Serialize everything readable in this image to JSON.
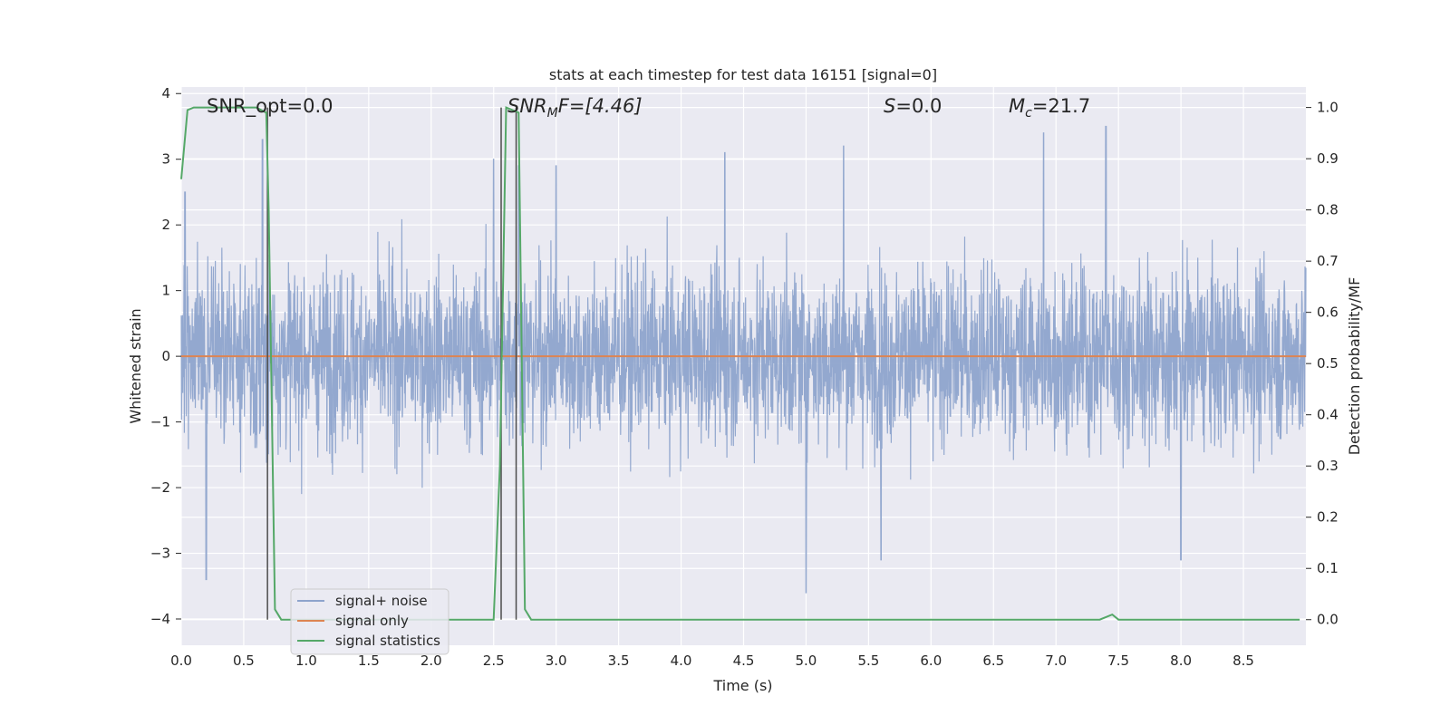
{
  "chart_data": {
    "type": "line",
    "title": "stats at each timestep for test data 16151 [signal=0]",
    "xlabel": "Time (s)",
    "ylabel": "Whitened strain",
    "y2label": "Detection probability/MF",
    "xlim": [
      0,
      9.0
    ],
    "ylim": [
      -4.4,
      4.1
    ],
    "y2lim": [
      -0.05,
      1.04
    ],
    "xticks": [
      "0.0",
      "0.5",
      "1.0",
      "1.5",
      "2.0",
      "2.5",
      "3.0",
      "3.5",
      "4.0",
      "4.5",
      "5.0",
      "5.5",
      "6.0",
      "6.5",
      "7.0",
      "7.5",
      "8.0",
      "8.5"
    ],
    "xtick_values": [
      0,
      0.5,
      1,
      1.5,
      2,
      2.5,
      3,
      3.5,
      4,
      4.5,
      5,
      5.5,
      6,
      6.5,
      7,
      7.5,
      8,
      8.5
    ],
    "yticks": [
      "−4",
      "−3",
      "−2",
      "−1",
      "0",
      "1",
      "2",
      "3",
      "4"
    ],
    "ytick_values": [
      -4,
      -3,
      -2,
      -1,
      0,
      1,
      2,
      3,
      4
    ],
    "y2ticks": [
      "0.0",
      "0.1",
      "0.2",
      "0.3",
      "0.4",
      "0.5",
      "0.6",
      "0.7",
      "0.8",
      "0.9",
      "1.0"
    ],
    "y2tick_values": [
      0,
      0.1,
      0.2,
      0.3,
      0.4,
      0.5,
      0.6,
      0.7,
      0.8,
      0.9,
      1.0
    ],
    "grid": true,
    "legend_position": "lower-left",
    "annotations": {
      "snr_opt": "SNR_opt=0.0",
      "snr_mf_main": "SNR",
      "snr_mf_sub": "M",
      "snr_mf_rest": "F=[4.46]",
      "s_main": "S",
      "s_rest": "=0.0",
      "mc_main": "M",
      "mc_sub": "c",
      "mc_rest": "=21.7"
    },
    "series": [
      {
        "name": "signal+ noise",
        "color": "#8ea4cc",
        "axis": "left",
        "noise_amplitude": 1.3,
        "peaks": [
          [
            0.03,
            2.5
          ],
          [
            0.2,
            -3.4
          ],
          [
            0.65,
            3.3
          ],
          [
            2.5,
            3.0
          ],
          [
            2.7,
            2.9
          ],
          [
            3.0,
            2.9
          ],
          [
            4.35,
            3.1
          ],
          [
            5.0,
            -3.6
          ],
          [
            5.3,
            3.2
          ],
          [
            5.6,
            -3.1
          ],
          [
            6.9,
            3.4
          ],
          [
            7.4,
            3.5
          ],
          [
            8.0,
            -3.1
          ]
        ]
      },
      {
        "name": "signal only",
        "color": "#dd8452",
        "axis": "left",
        "x": [
          0,
          9.0
        ],
        "y": [
          0,
          0
        ]
      },
      {
        "name": "signal statistics",
        "color": "#55a868",
        "axis": "right",
        "x": [
          0,
          0.05,
          0.1,
          0.6,
          0.68,
          0.7,
          0.75,
          0.8,
          2.5,
          2.55,
          2.6,
          2.65,
          2.7,
          2.75,
          2.8,
          7.35,
          7.4,
          7.45,
          7.5,
          8.95
        ],
        "y": [
          0.86,
          0.995,
          1.0,
          1.0,
          0.99,
          0.8,
          0.02,
          0.0,
          0.0,
          0.3,
          1.0,
          0.995,
          0.99,
          0.02,
          0.0,
          0.0,
          0.005,
          0.01,
          0.0,
          0.0
        ]
      }
    ],
    "vlines": [
      0.69,
      2.56,
      2.68
    ]
  }
}
